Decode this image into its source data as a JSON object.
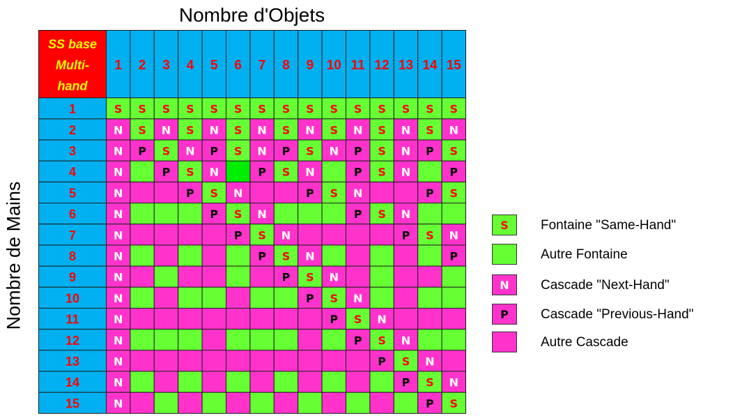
{
  "chart_data": {
    "type": "table",
    "title": "Nombre d'Objets",
    "ylabel": "Nombre de Mains",
    "corner_label": [
      "SS base",
      "Multi-",
      "hand"
    ],
    "columns": [
      "1",
      "2",
      "3",
      "4",
      "5",
      "6",
      "7",
      "8",
      "9",
      "10",
      "11",
      "12",
      "13",
      "14",
      "15"
    ],
    "rows": [
      "1",
      "2",
      "3",
      "4",
      "5",
      "6",
      "7",
      "8",
      "9",
      "10",
      "11",
      "12",
      "13",
      "14",
      "15"
    ],
    "colors": {
      "header_blue": "#00b0f0",
      "corner_red": "#ff0000",
      "corner_text": "#ffff00",
      "header_text": "#ff0000",
      "fountain_green": "#66ff33",
      "cascade_magenta": "#ff33cc",
      "special_green": "#00ee00",
      "letter_s": "#ff0000",
      "letter_n": "#ffffff",
      "letter_p": "#000000"
    },
    "cells": [
      [
        "GS",
        "GS",
        "GS",
        "GS",
        "GS",
        "GS",
        "GS",
        "GS",
        "GS",
        "GS",
        "GS",
        "GS",
        "GS",
        "GS",
        "GS"
      ],
      [
        "MN",
        "GS",
        "MN",
        "GS",
        "MN",
        "GS",
        "MN",
        "GS",
        "MN",
        "GS",
        "MN",
        "GS",
        "MN",
        "GS",
        "MN"
      ],
      [
        "MN",
        "MP",
        "GS",
        "MN",
        "MP",
        "GS",
        "MN",
        "MP",
        "GS",
        "MN",
        "MP",
        "GS",
        "MN",
        "MP",
        "GS"
      ],
      [
        "MN",
        "G",
        "MP",
        "GS",
        "MN",
        "X",
        "MP",
        "GS",
        "MN",
        "G",
        "MP",
        "GS",
        "MN",
        "G",
        "MP"
      ],
      [
        "MN",
        "M",
        "M",
        "MP",
        "GS",
        "MN",
        "M",
        "M",
        "MP",
        "GS",
        "MN",
        "M",
        "M",
        "MP",
        "GS"
      ],
      [
        "MN",
        "G",
        "G",
        "G",
        "MP",
        "GS",
        "MN",
        "G",
        "G",
        "G",
        "MP",
        "GS",
        "MN",
        "G",
        "G"
      ],
      [
        "MN",
        "M",
        "M",
        "M",
        "M",
        "MP",
        "GS",
        "MN",
        "M",
        "M",
        "M",
        "M",
        "MP",
        "GS",
        "MN"
      ],
      [
        "MN",
        "G",
        "M",
        "G",
        "M",
        "G",
        "MP",
        "GS",
        "MN",
        "G",
        "M",
        "G",
        "M",
        "G",
        "MP"
      ],
      [
        "MN",
        "M",
        "G",
        "M",
        "M",
        "G",
        "M",
        "MP",
        "GS",
        "MN",
        "M",
        "G",
        "M",
        "M",
        "G"
      ],
      [
        "MN",
        "G",
        "M",
        "G",
        "G",
        "M",
        "G",
        "G",
        "MP",
        "GS",
        "MN",
        "G",
        "M",
        "G",
        "G"
      ],
      [
        "MN",
        "M",
        "M",
        "M",
        "M",
        "M",
        "M",
        "M",
        "M",
        "MP",
        "GS",
        "MN",
        "M",
        "M",
        "M"
      ],
      [
        "MN",
        "G",
        "G",
        "G",
        "M",
        "G",
        "G",
        "G",
        "M",
        "G",
        "MP",
        "GS",
        "MN",
        "G",
        "G"
      ],
      [
        "MN",
        "M",
        "M",
        "M",
        "M",
        "M",
        "M",
        "M",
        "M",
        "M",
        "M",
        "MP",
        "GS",
        "MN",
        "M"
      ],
      [
        "MN",
        "G",
        "M",
        "G",
        "M",
        "G",
        "M",
        "G",
        "M",
        "G",
        "M",
        "G",
        "MP",
        "GS",
        "MN"
      ],
      [
        "MN",
        "M",
        "G",
        "M",
        "G",
        "M",
        "G",
        "M",
        "G",
        "M",
        "G",
        "M",
        "G",
        "MP",
        "GS"
      ]
    ],
    "legend": [
      {
        "code": "GS",
        "letter": "S",
        "label": "Fontaine \"Same-Hand\""
      },
      {
        "code": "G",
        "letter": "",
        "label": "Autre Fontaine"
      },
      {
        "code": "MN",
        "letter": "N",
        "label": "Cascade \"Next-Hand\""
      },
      {
        "code": "MP",
        "letter": "P",
        "label": "Cascade \"Previous-Hand\""
      },
      {
        "code": "M",
        "letter": "",
        "label": "Autre Cascade"
      }
    ]
  }
}
